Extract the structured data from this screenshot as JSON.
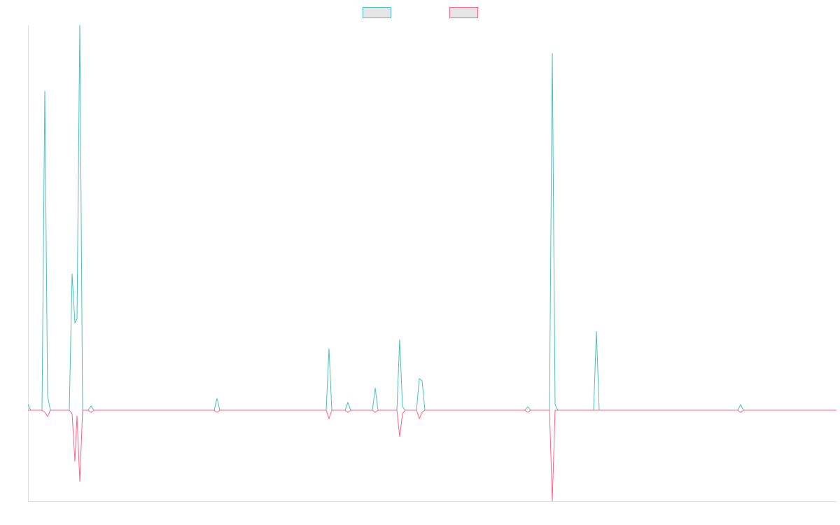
{
  "chart_data": {
    "type": "line",
    "x": [
      0,
      4,
      20,
      24,
      28,
      32,
      59,
      63,
      67,
      70,
      74,
      78,
      86,
      90,
      94,
      266,
      270,
      274,
      426,
      430,
      434,
      453,
      457,
      461,
      492,
      496,
      500,
      527,
      531,
      535,
      539,
      555,
      559,
      563,
      567,
      710,
      714,
      718,
      745,
      749,
      753,
      757,
      808,
      812,
      816,
      1014,
      1018,
      1022,
      1155
    ],
    "xlim": [
      0,
      1155
    ],
    "ylim": [
      -130,
      550
    ],
    "series": [
      {
        "color": "#4bc0c0",
        "values": [
          8,
          0,
          0,
          456,
          20,
          0,
          0,
          195,
          125,
          130,
          550,
          0,
          0,
          6,
          0,
          0,
          17,
          0,
          0,
          88,
          0,
          0,
          11,
          0,
          0,
          32,
          0,
          0,
          101,
          5,
          0,
          0,
          45,
          42,
          0,
          0,
          5,
          0,
          0,
          510,
          8,
          0,
          0,
          113,
          0,
          0,
          8,
          0,
          0
        ]
      },
      {
        "color": "#ff6384",
        "values": [
          0,
          0,
          0,
          -3,
          -9,
          0,
          0,
          -5,
          -73,
          -8,
          -102,
          0,
          0,
          -3,
          0,
          0,
          -3,
          0,
          0,
          -12,
          0,
          0,
          -3,
          0,
          0,
          -3,
          0,
          0,
          -38,
          -5,
          0,
          0,
          -12,
          -3,
          0,
          0,
          -3,
          0,
          0,
          -130,
          0,
          0,
          0,
          0,
          0,
          0,
          -3,
          0,
          0
        ]
      }
    ]
  }
}
